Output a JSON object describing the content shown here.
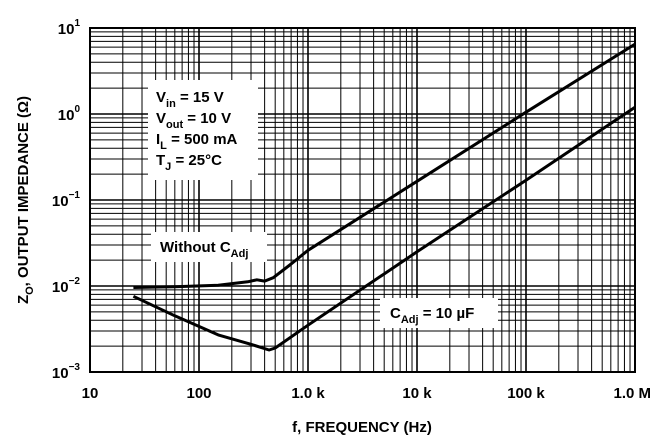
{
  "chart_data": {
    "type": "line",
    "xlabel": "f, FREQUENCY (Hz)",
    "ylabel": "Z",
    "ylabel_sub": "O",
    "ylabel_rest": ", OUTPUT IMPEDANCE (Ω)",
    "x_scale": "log",
    "y_scale": "log",
    "xlim": [
      10,
      1000000
    ],
    "ylim": [
      0.001,
      10
    ],
    "grid": true,
    "x_ticks": [
      {
        "value": 10,
        "label": "10"
      },
      {
        "value": 100,
        "label": "100"
      },
      {
        "value": 1000,
        "label": "1.0 k"
      },
      {
        "value": 10000,
        "label": "10 k"
      },
      {
        "value": 100000,
        "label": "100 k"
      },
      {
        "value": 1000000,
        "label": "1.0 M"
      }
    ],
    "y_ticks": [
      {
        "value": 10,
        "base": "10",
        "exp": "1"
      },
      {
        "value": 1,
        "base": "10",
        "exp": "0"
      },
      {
        "value": 0.1,
        "base": "10",
        "exp": "−1"
      },
      {
        "value": 0.01,
        "base": "10",
        "exp": "−2"
      },
      {
        "value": 0.001,
        "base": "10",
        "exp": "−3"
      }
    ],
    "conditions": [
      {
        "main": "V",
        "sub": "in",
        "rest": " = 15 V"
      },
      {
        "main": "V",
        "sub": "out",
        "rest": " = 10 V"
      },
      {
        "main": "I",
        "sub": "L",
        "rest": " = 500 mA"
      },
      {
        "main": "T",
        "sub": "J",
        "rest": " = 25°C"
      }
    ],
    "series": [
      {
        "label_main": "Without C",
        "label_sub": "Adj",
        "label_rest": "",
        "points": [
          [
            25,
            0.0096
          ],
          [
            60,
            0.0098
          ],
          [
            150,
            0.0102
          ],
          [
            280,
            0.0112
          ],
          [
            340,
            0.0118
          ],
          [
            400,
            0.0114
          ],
          [
            480,
            0.0125
          ],
          [
            700,
            0.018
          ],
          [
            1000,
            0.026
          ],
          [
            10000,
            0.165
          ],
          [
            100000,
            1.05
          ],
          [
            1000000,
            6.5
          ]
        ]
      },
      {
        "label_main": "C",
        "label_sub": "Adj",
        "label_rest": " = 10 µF",
        "points": [
          [
            25,
            0.0076
          ],
          [
            60,
            0.0045
          ],
          [
            150,
            0.0027
          ],
          [
            300,
            0.0021
          ],
          [
            440,
            0.0018
          ],
          [
            500,
            0.0019
          ],
          [
            1000,
            0.0035
          ],
          [
            10000,
            0.025
          ],
          [
            100000,
            0.17
          ],
          [
            1000000,
            1.2
          ]
        ]
      }
    ]
  }
}
